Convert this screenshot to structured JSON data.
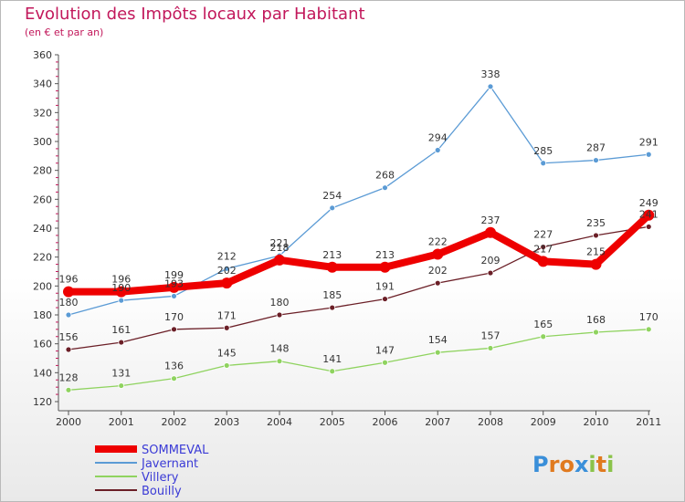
{
  "title": "Evolution des Impôts locaux par Habitant",
  "subtitle": "(en € et par an)",
  "logo_text": "Proxiti",
  "chart_data": {
    "type": "line",
    "categories": [
      "2000",
      "2001",
      "2002",
      "2003",
      "2004",
      "2005",
      "2006",
      "2007",
      "2008",
      "2009",
      "2010",
      "2011"
    ],
    "ylim": [
      120,
      360
    ],
    "yticks": [
      120,
      140,
      160,
      180,
      200,
      220,
      240,
      260,
      280,
      300,
      320,
      340,
      360
    ],
    "grid": false,
    "legend_position": "bottom-left",
    "series": [
      {
        "name": "Javernant",
        "color": "#5b9bd5",
        "values": [
          180,
          190,
          193,
          212,
          221,
          254,
          268,
          294,
          338,
          285,
          287,
          291
        ]
      },
      {
        "name": "Villery",
        "color": "#8fd35f",
        "values": [
          128,
          131,
          136,
          145,
          148,
          141,
          147,
          154,
          157,
          165,
          168,
          170
        ]
      },
      {
        "name": "Bouilly",
        "color": "#6b1f27",
        "values": [
          156,
          161,
          170,
          171,
          180,
          185,
          191,
          202,
          209,
          227,
          235,
          241
        ]
      },
      {
        "name": "SOMMEVAL",
        "color": "#ee0000",
        "values": [
          196,
          196,
          199,
          202,
          218,
          213,
          213,
          222,
          237,
          217,
          215,
          249
        ]
      }
    ],
    "labels": {
      "Javernant": [
        "180",
        "190",
        "193",
        "212",
        "221",
        "254",
        "268",
        "294",
        "338",
        "285",
        "287",
        "291"
      ],
      "Villery": [
        "128",
        "131",
        "136",
        "145",
        "148",
        "141",
        "147",
        "154",
        "157",
        "165",
        "168",
        "170"
      ],
      "Bouilly": [
        "156",
        "161",
        "170",
        "171",
        "180",
        "185",
        "191",
        "202",
        "209",
        "227",
        "235",
        "241"
      ],
      "SOMMEVAL": [
        "196",
        "196",
        "199",
        "202",
        "218",
        "213",
        "213",
        "222",
        "237",
        "217",
        "215",
        "249"
      ]
    }
  }
}
